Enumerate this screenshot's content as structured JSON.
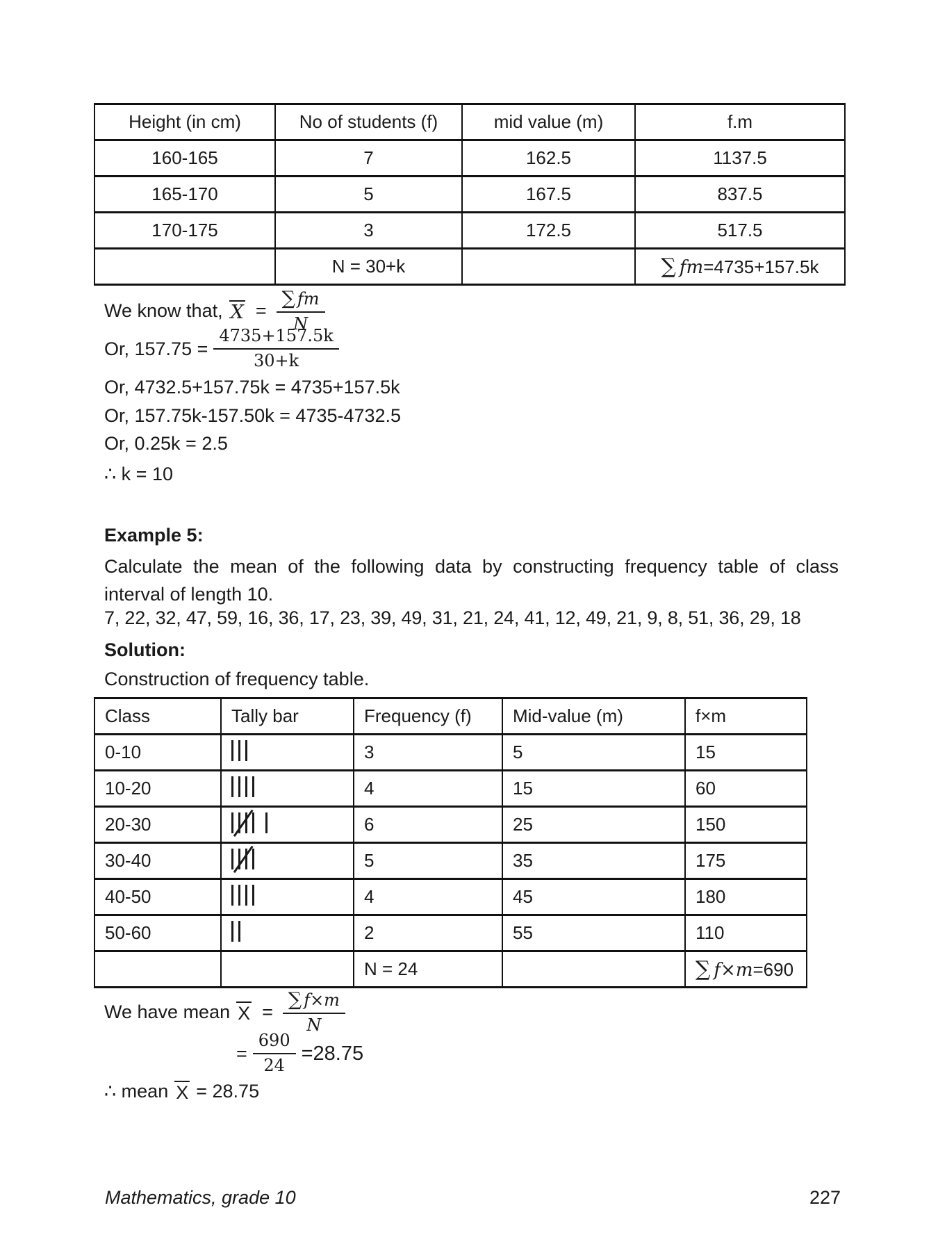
{
  "page": {
    "text_color": "#1a1a1a",
    "background": "#ffffff"
  },
  "table1": {
    "headers": [
      "Height (in cm)",
      "No of students (f)",
      "mid value (m)",
      "f.m"
    ],
    "rows": [
      [
        "160-165",
        "7",
        "162.5",
        "1137.5"
      ],
      [
        "165-170",
        "5",
        "167.5",
        "837.5"
      ],
      [
        "170-175",
        "3",
        "172.5",
        "517.5"
      ]
    ],
    "total": {
      "n_label": "N = 30+k",
      "sum_sigma": "∑",
      "sum_vars": "fm",
      "sum_value": "=4735+157.5k"
    }
  },
  "derivation": {
    "line1_prefix": "We know that,",
    "line1_var": "X",
    "line1_eq": "=",
    "line1_frac": {
      "num_sigma": "∑",
      "num_vars": "fm",
      "den": "N"
    },
    "line2_prefix": "Or, 157.75 =",
    "line2_frac": {
      "num": "4735+157.5k",
      "den": "30+k"
    },
    "line3": "Or, 4732.5+157.75k = 4735+157.5k",
    "line4": "Or, 157.75k-157.50k = 4735-4732.5",
    "line5": "Or, 0.25k = 2.5",
    "line6": "∴ k = 10"
  },
  "example": {
    "heading": "Example 5:",
    "body_line1": "Calculate the mean of the following data by constructing frequency table of class",
    "body_line2": "interval of length 10.",
    "data_values": "7, 22, 32, 47, 59, 16, 36, 17, 23, 39, 49, 31, 21, 24, 41, 12, 49, 21, 9, 8, 51, 36, 29, 18",
    "solution_heading": "Solution:",
    "solution_intro": "Construction of frequency table."
  },
  "table2": {
    "headers": [
      "Class",
      "Tally bar",
      "Frequency (f)",
      "Mid-value (m)",
      "f×m"
    ],
    "rows": [
      {
        "class": "0-10",
        "tally": [
          3
        ],
        "frequency": "3",
        "mid_value": "5",
        "fm": "15"
      },
      {
        "class": "10-20",
        "tally": [
          4
        ],
        "frequency": "4",
        "mid_value": "15",
        "fm": "60"
      },
      {
        "class": "20-30",
        "tally": [
          5,
          1
        ],
        "frequency": "6",
        "mid_value": "25",
        "fm": "150"
      },
      {
        "class": "30-40",
        "tally": [
          5
        ],
        "frequency": "5",
        "mid_value": "35",
        "fm": "175"
      },
      {
        "class": "40-50",
        "tally": [
          4
        ],
        "frequency": "4",
        "mid_value": "45",
        "fm": "180"
      },
      {
        "class": "50-60",
        "tally": [
          2
        ],
        "frequency": "2",
        "mid_value": "55",
        "fm": "110"
      }
    ],
    "total": {
      "n_label": "N = 24",
      "sum_sigma": "∑",
      "sum_vars": "f×m",
      "sum_value": "=690"
    }
  },
  "mean_calc": {
    "line1_prefix": "We have mean",
    "line1_var": "X",
    "line1_eq": "=",
    "line1_frac": {
      "num_sigma": "∑",
      "num_vars": "f×m",
      "den": "N"
    },
    "line2_eq": "=",
    "line2_frac": {
      "num": "690",
      "den": "24"
    },
    "line2_result": "=28.75",
    "line3_prefix": "∴ mean",
    "line3_var": "X",
    "line3_value": "= 28.75"
  },
  "footer": {
    "book_title": "Mathematics, grade 10",
    "page_number": "227"
  }
}
